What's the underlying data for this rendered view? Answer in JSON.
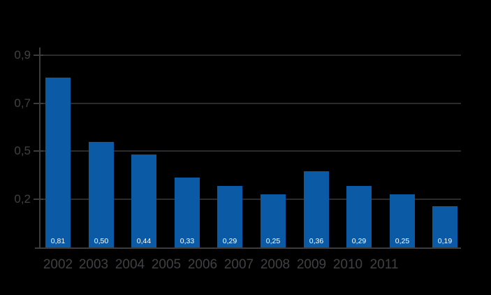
{
  "chart_data": {
    "type": "bar",
    "title": "",
    "xlabel": "",
    "ylabel": "",
    "categories": [
      "2002",
      "2003",
      "2004",
      "2005",
      "2006",
      "2007",
      "2008",
      "2009",
      "2010",
      "2011"
    ],
    "values": [
      0.81,
      0.5,
      0.44,
      0.33,
      0.29,
      0.25,
      0.36,
      0.29,
      0.25,
      0.19
    ],
    "bar_value_labels": [
      "0,81",
      "0,50",
      "0,44",
      "0,33",
      "0,29",
      "0,25",
      "0,36",
      "0,29",
      "0,25",
      "0,19"
    ],
    "y_tick_labels": [
      "0,9",
      "0,7",
      "0,5",
      "0,2"
    ],
    "ylim": [
      0,
      0.95
    ],
    "grid": "horizontal",
    "legend": "none",
    "decimal_separator": ",",
    "colors": {
      "background": "#000000",
      "bar": "#0b5aa5",
      "gridline": "#2b2b2d",
      "axis": "#3c3c3e",
      "tick_text": "#414144",
      "bar_label_text": "#ffffff"
    }
  }
}
